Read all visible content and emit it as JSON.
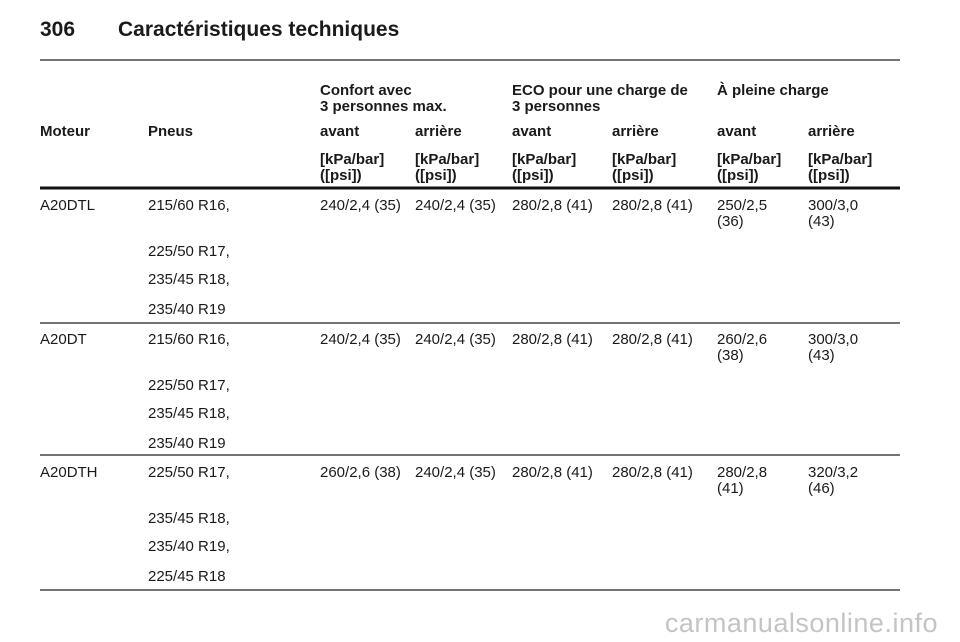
{
  "header": {
    "page_number": "306",
    "title": "Caractéristiques techniques"
  },
  "table": {
    "group_headers": [
      "Confort avec\n3 personnes max.",
      "ECO pour une charge de\n3 personnes",
      "À pleine charge"
    ],
    "columns": [
      "Moteur",
      "Pneus",
      "avant",
      "arrière",
      "avant",
      "arrière",
      "avant",
      "arrière"
    ],
    "units": [
      "[kPa/bar]\n([psi])",
      "[kPa/bar]\n([psi])",
      "[kPa/bar]\n([psi])",
      "[kPa/bar]\n([psi])",
      "[kPa/bar]\n([psi])",
      "[kPa/bar]\n([psi])"
    ],
    "rows": [
      {
        "engine": "A20DTL",
        "tires": [
          "215/60 R16,",
          "225/50 R17,",
          "235/45 R18,",
          "235/40 R19"
        ],
        "values": [
          "240/2,4 (35)",
          "240/2,4 (35)",
          "280/2,8 (41)",
          "280/2,8 (41)",
          "250/2,5\n(36)",
          "300/3,0\n(43)"
        ]
      },
      {
        "engine": "A20DT",
        "tires": [
          "215/60 R16,",
          "225/50 R17,",
          "235/45 R18,",
          "235/40 R19"
        ],
        "values": [
          "240/2,4 (35)",
          "240/2,4 (35)",
          "280/2,8 (41)",
          "280/2,8 (41)",
          "260/2,6\n(38)",
          "300/3,0\n(43)"
        ]
      },
      {
        "engine": "A20DTH",
        "tires": [
          "225/50 R17,",
          "235/45 R18,",
          "235/40 R19,",
          "225/45 R18"
        ],
        "values": [
          "260/2,6 (38)",
          "240/2,4 (35)",
          "280/2,8 (41)",
          "280/2,8 (41)",
          "280/2,8\n(41)",
          "320/3,2\n(46)"
        ]
      }
    ]
  },
  "watermark": "carmanualsonline.info"
}
